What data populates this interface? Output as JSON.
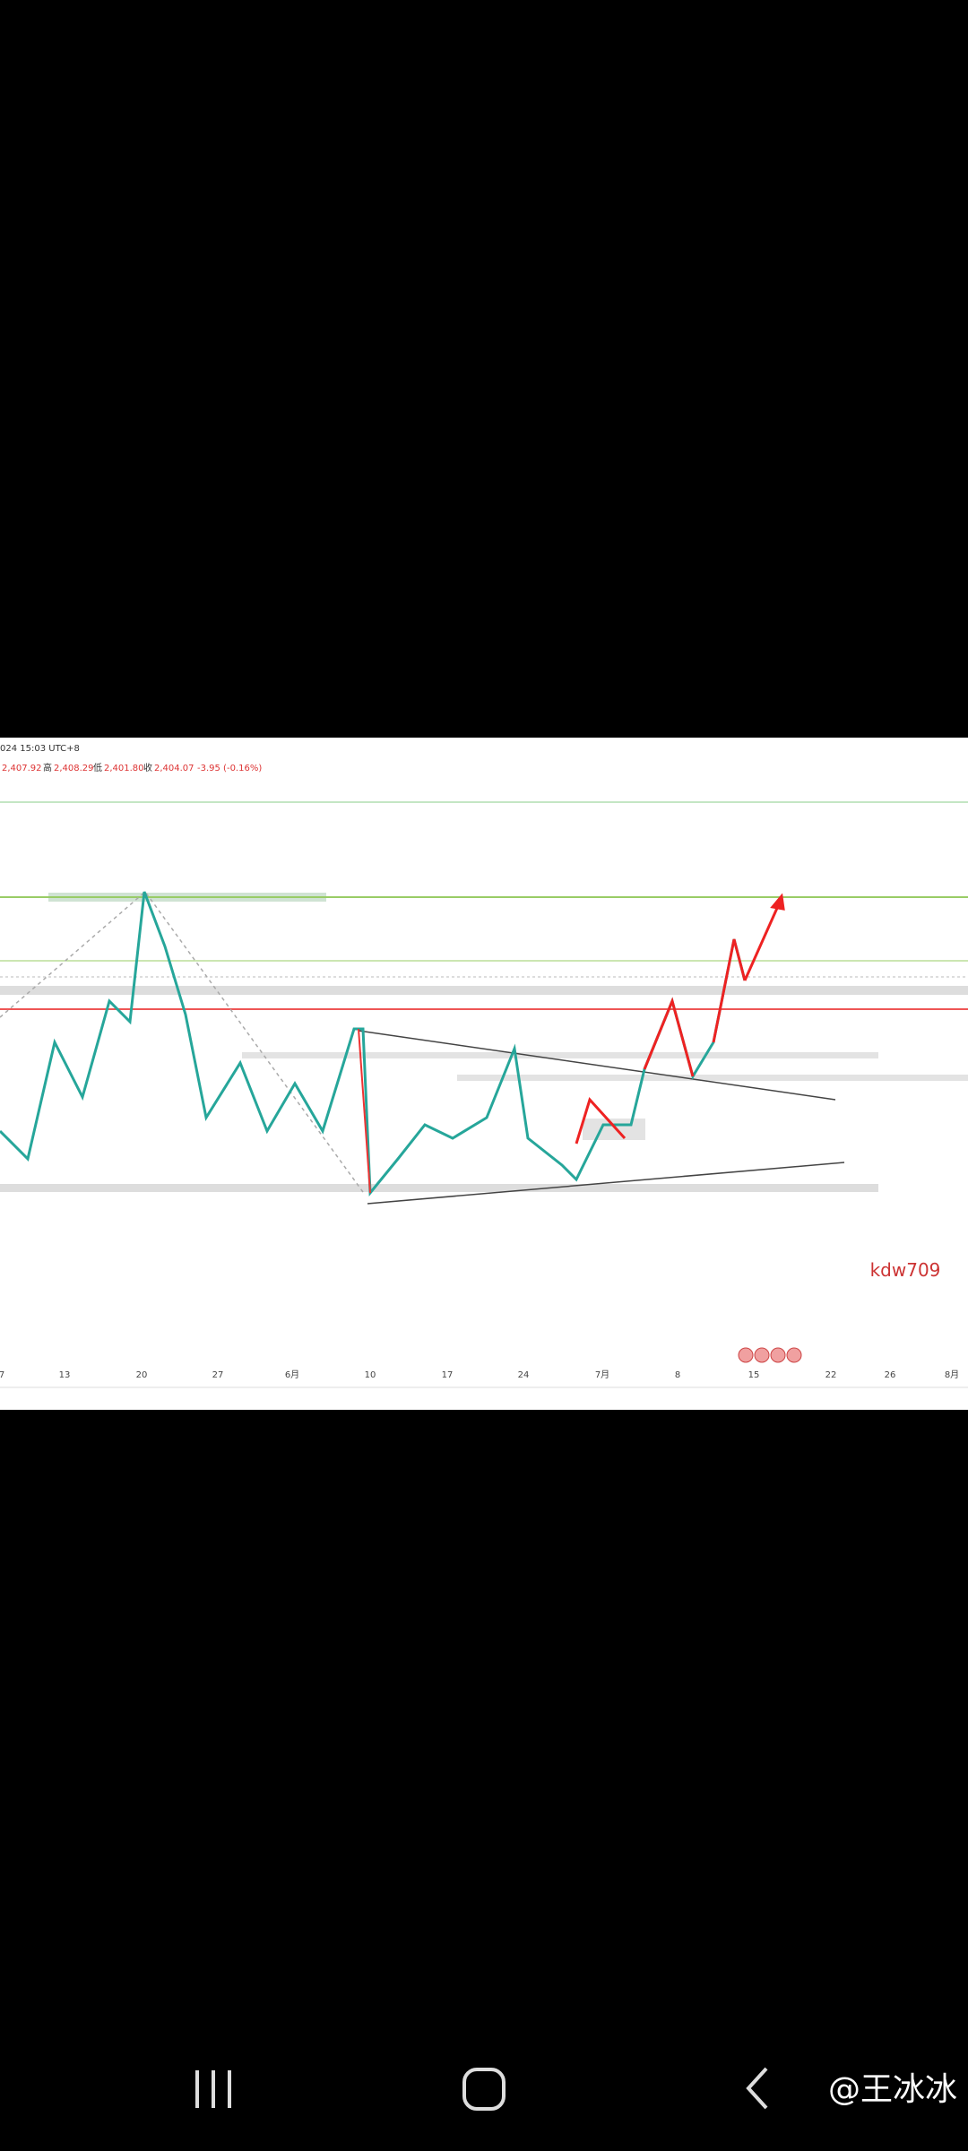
{
  "header": {
    "time": "024 15:03 UTC+8",
    "open": "2,407.92",
    "high_label": "高",
    "high": "2,408.29",
    "low_label": "低",
    "low": "2,401.80",
    "close_label": "收",
    "close": "2,404.07",
    "change": "-3.95 (-0.16%)"
  },
  "x_axis": [
    "7",
    "13",
    "20",
    "27",
    "6月",
    "10",
    "17",
    "24",
    "7月",
    "8",
    "15",
    "22",
    "26",
    "8月"
  ],
  "watermark": "kdw709",
  "brand": "@王冰冰"
}
